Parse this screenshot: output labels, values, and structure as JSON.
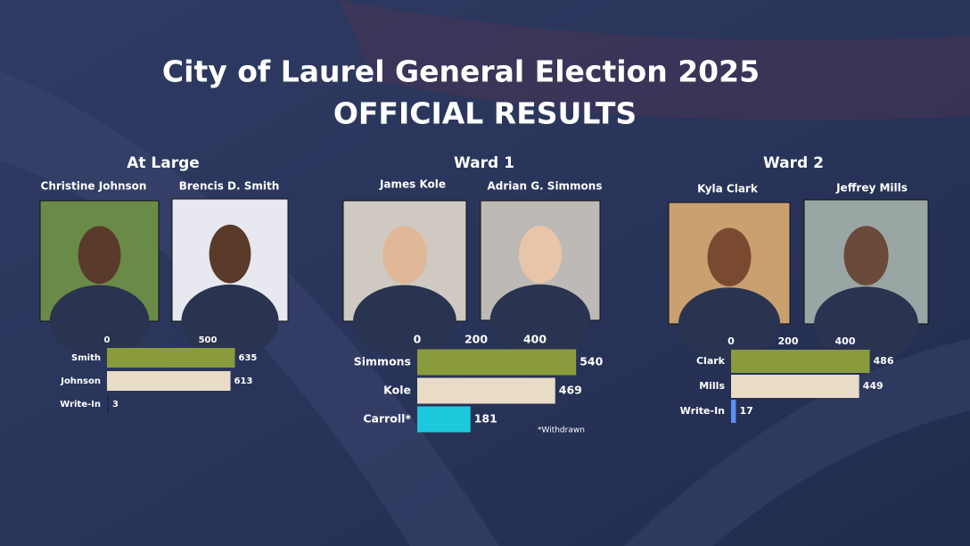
{
  "title": "City of Laurel General Election 2025",
  "subtitle": "OFFICIAL RESULTS",
  "chart_data": [
    {
      "type": "bar",
      "orientation": "horizontal",
      "title": "At Large",
      "candidates": [
        "Christine Johnson",
        "Brencis D. Smith"
      ],
      "categories": [
        "Smith",
        "Johnson",
        "Write-In"
      ],
      "values": [
        635,
        613,
        3
      ],
      "colors": [
        "#8a9b3e",
        "#e8dcc6",
        "#1e2a55"
      ],
      "xlim": [
        0,
        700
      ],
      "xticks": [
        0,
        500
      ]
    },
    {
      "type": "bar",
      "orientation": "horizontal",
      "title": "Ward 1",
      "candidates": [
        "James Kole",
        "Adrian G. Simmons"
      ],
      "categories": [
        "Simmons",
        "Kole",
        "Carroll*"
      ],
      "values": [
        540,
        469,
        181
      ],
      "colors": [
        "#8a9b3e",
        "#e8dcc6",
        "#1ec8dc"
      ],
      "xlim": [
        0,
        600
      ],
      "xticks": [
        0,
        200,
        400
      ],
      "annotation": "*Withdrawn"
    },
    {
      "type": "bar",
      "orientation": "horizontal",
      "title": "Ward 2",
      "candidates": [
        "Kyla Clark",
        "Jeffrey Mills"
      ],
      "categories": [
        "Clark",
        "Mills",
        "Write-In"
      ],
      "values": [
        486,
        449,
        17
      ],
      "colors": [
        "#8a9b3e",
        "#e8dcc6",
        "#5b8ff0"
      ],
      "xlim": [
        0,
        600
      ],
      "xticks": [
        0,
        200,
        400
      ]
    }
  ]
}
